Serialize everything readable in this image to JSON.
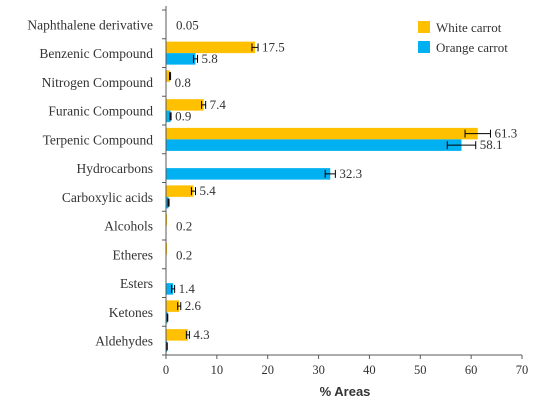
{
  "chart_data": {
    "type": "bar",
    "orientation": "horizontal",
    "categories": [
      "Naphthalene derivative",
      "Benzenic Compound",
      "Nitrogen Compound",
      "Furanic Compound",
      "Terpenic Compound",
      "Hydrocarbons",
      "Carboxylic acids",
      "Alcohols",
      "Etheres",
      "Esters",
      "Ketones",
      "Aldehydes"
    ],
    "series": [
      {
        "name": "White carrot",
        "color": "#FFC000",
        "values": [
          0.05,
          17.5,
          0.8,
          7.4,
          61.3,
          0,
          5.4,
          0.2,
          0.2,
          0,
          2.6,
          4.3
        ],
        "errors": [
          0,
          0.6,
          0.1,
          0.4,
          2.5,
          0,
          0.4,
          0,
          0,
          0,
          0.3,
          0.3
        ]
      },
      {
        "name": "Orange carrot",
        "color": "#00B0F0",
        "values": [
          0,
          5.8,
          0,
          0.9,
          58.1,
          32.3,
          0.5,
          0,
          0,
          1.4,
          0.3,
          0.2
        ],
        "errors": [
          0,
          0.4,
          0,
          0.1,
          2.8,
          1.0,
          0.1,
          0,
          0,
          0.3,
          0.05,
          0.05
        ]
      }
    ],
    "data_labels": [
      {
        "category": "Naphthalene derivative",
        "text": "0.05"
      },
      {
        "category": "Benzenic Compound",
        "series": 0,
        "text": "17.5"
      },
      {
        "category": "Benzenic Compound",
        "series": 1,
        "text": "5.8"
      },
      {
        "category": "Nitrogen Compound",
        "series": 0,
        "text": "0.8"
      },
      {
        "category": "Furanic Compound",
        "series": 0,
        "text": "7.4"
      },
      {
        "category": "Furanic Compound",
        "series": 1,
        "text": "0.9"
      },
      {
        "category": "Terpenic Compound",
        "series": 0,
        "text": "61.3"
      },
      {
        "category": "Terpenic Compound",
        "series": 1,
        "text": "58.1"
      },
      {
        "category": "Hydrocarbons",
        "series": 1,
        "text": "32.3"
      },
      {
        "category": "Carboxylic acids",
        "series": 0,
        "text": "5.4"
      },
      {
        "category": "Alcohols",
        "text": "0.2"
      },
      {
        "category": "Etheres",
        "text": "0.2"
      },
      {
        "category": "Esters",
        "series": 1,
        "text": "1.4"
      },
      {
        "category": "Ketones",
        "series": 0,
        "text": "2.6"
      },
      {
        "category": "Aldehydes",
        "series": 0,
        "text": "4.3"
      }
    ],
    "xlabel": "% Areas",
    "xlim": [
      0,
      70
    ],
    "xticks": [
      0,
      10,
      20,
      30,
      40,
      50,
      60,
      70
    ],
    "legend_position": "top-right",
    "grid": false
  }
}
